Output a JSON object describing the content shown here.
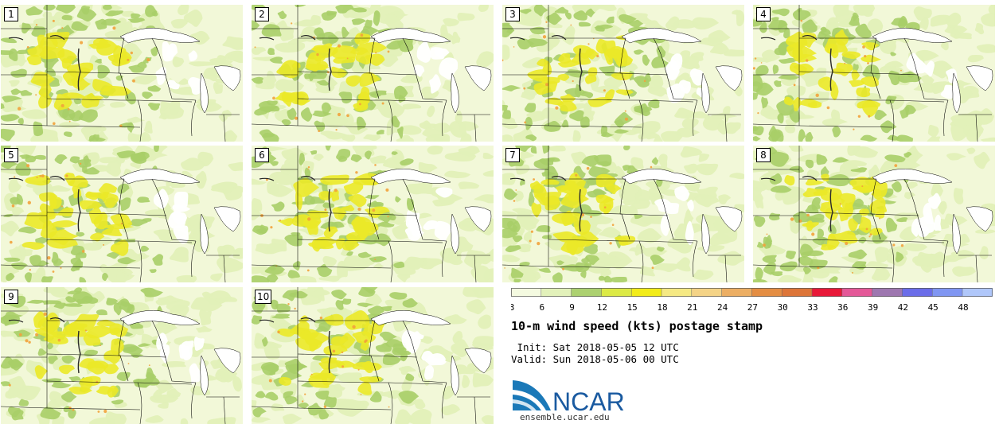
{
  "title": "10-m wind speed (kts) postage stamp",
  "init": " Init: Sat 2018-05-05 12 UTC",
  "valid": "Valid: Sun 2018-05-06 00 UTC",
  "members": [
    "1",
    "2",
    "3",
    "4",
    "5",
    "6",
    "7",
    "8",
    "9",
    "10"
  ],
  "colorbar": {
    "ticks": [
      "3",
      "6",
      "9",
      "12",
      "15",
      "18",
      "21",
      "24",
      "27",
      "30",
      "33",
      "36",
      "39",
      "42",
      "45",
      "48"
    ],
    "colors": [
      "#f4fae0",
      "#e2f1ba",
      "#acd170",
      "#dcea45",
      "#f2ec18",
      "#f5e983",
      "#f4d386",
      "#ecae63",
      "#e48d42",
      "#dd7538",
      "#e81838",
      "#e45898",
      "#9e77b0",
      "#6b6de9",
      "#8096f2",
      "#b0c7fa"
    ]
  },
  "logo": {
    "brand": "NCAR",
    "url": "ensemble.ucar.edu"
  },
  "colors": {
    "background": "#f2f8d8",
    "light": "#e1f0b8",
    "green": "#a8ce68",
    "yellow": "#ebe928",
    "orange": "#f2a23c",
    "lakes": "#ffffff",
    "borders": "#000000"
  }
}
